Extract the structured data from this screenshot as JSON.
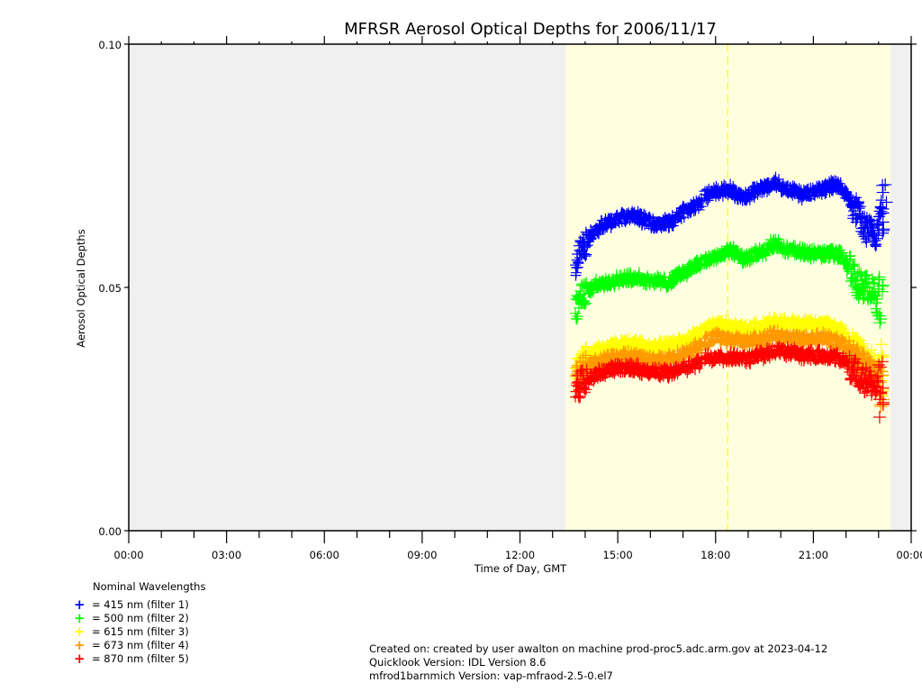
{
  "chart_data": {
    "type": "scatter",
    "title": "MFRSR Aerosol Optical Depths for 2006/11/17",
    "xlabel": "Time of Day, GMT",
    "ylabel": "Aerosol Optical Depths",
    "xlim": [
      0,
      24
    ],
    "ylim": [
      0.0,
      0.1
    ],
    "x_unit": "hours GMT",
    "x_ticks": [
      {
        "value": 0,
        "label": "00:00"
      },
      {
        "value": 3,
        "label": "03:00"
      },
      {
        "value": 6,
        "label": "06:00"
      },
      {
        "value": 9,
        "label": "09:00"
      },
      {
        "value": 12,
        "label": "12:00"
      },
      {
        "value": 15,
        "label": "15:00"
      },
      {
        "value": 18,
        "label": "18:00"
      },
      {
        "value": 21,
        "label": "21:00"
      },
      {
        "value": 24,
        "label": "00:00"
      }
    ],
    "y_ticks": [
      {
        "value": 0.0,
        "label": "0.00"
      },
      {
        "value": 0.05,
        "label": "0.05"
      },
      {
        "value": 0.1,
        "label": "0.10"
      }
    ],
    "daylight_period": [
      13.4,
      23.37
    ],
    "solar_noon": 18.37,
    "colors": {
      "night_background": "#f0f0f0",
      "daylight_background": "#ffffe0",
      "solar_noon_line": "#ffff00"
    },
    "legend": {
      "title": "Nominal Wavelengths",
      "placement": "bottom-left"
    },
    "series": [
      {
        "name": "= 415 nm (filter 1)",
        "color": "#0000ff",
        "x": [
          13.7,
          13.9,
          14.2,
          14.6,
          15.0,
          15.4,
          15.8,
          16.2,
          16.6,
          17.0,
          17.5,
          17.7,
          18.0,
          18.4,
          18.9,
          19.3,
          19.8,
          20.3,
          20.7,
          21.2,
          21.7,
          22.0,
          22.3,
          22.6,
          22.9,
          23.1
        ],
        "y": [
          0.055,
          0.058,
          0.061,
          0.063,
          0.064,
          0.0648,
          0.064,
          0.0628,
          0.0635,
          0.0655,
          0.067,
          0.069,
          0.0695,
          0.07,
          0.0685,
          0.07,
          0.0715,
          0.07,
          0.069,
          0.07,
          0.071,
          0.069,
          0.066,
          0.062,
          0.061,
          0.066
        ]
      },
      {
        "name": "= 500 nm (filter 2)",
        "color": "#00ff00",
        "x": [
          13.7,
          14.0,
          14.4,
          15.0,
          15.5,
          16.0,
          16.5,
          17.0,
          17.5,
          17.7,
          18.0,
          18.5,
          18.9,
          19.4,
          19.8,
          20.3,
          20.8,
          21.3,
          21.8,
          22.1,
          22.4,
          22.7,
          23.0
        ],
        "y": [
          0.046,
          0.049,
          0.0505,
          0.0515,
          0.052,
          0.0515,
          0.051,
          0.053,
          0.055,
          0.0555,
          0.0565,
          0.0575,
          0.056,
          0.057,
          0.059,
          0.0575,
          0.057,
          0.057,
          0.057,
          0.054,
          0.0505,
          0.05,
          0.047
        ]
      },
      {
        "name": "= 615 nm (filter 3)",
        "color": "#ffff00",
        "x": [
          13.7,
          14.0,
          14.5,
          15.0,
          15.5,
          16.0,
          16.5,
          17.0,
          17.5,
          17.7,
          18.0,
          18.5,
          19.0,
          19.4,
          19.8,
          20.3,
          20.8,
          21.3,
          21.8,
          22.2,
          22.6,
          23.0
        ],
        "y": [
          0.0325,
          0.0355,
          0.0375,
          0.038,
          0.0385,
          0.0375,
          0.038,
          0.039,
          0.0405,
          0.0415,
          0.0425,
          0.042,
          0.0415,
          0.042,
          0.043,
          0.0425,
          0.0425,
          0.0425,
          0.0415,
          0.038,
          0.0355,
          0.033
        ]
      },
      {
        "name": "= 673 nm (filter 4)",
        "color": "#ff9900",
        "x": [
          13.7,
          14.0,
          14.5,
          15.0,
          15.5,
          16.0,
          16.5,
          17.0,
          17.5,
          17.7,
          18.0,
          18.5,
          19.0,
          19.4,
          19.8,
          20.3,
          20.8,
          21.3,
          21.8,
          22.2,
          22.6,
          23.0
        ],
        "y": [
          0.031,
          0.0335,
          0.035,
          0.0355,
          0.036,
          0.035,
          0.0352,
          0.0362,
          0.0378,
          0.039,
          0.0398,
          0.0392,
          0.0388,
          0.0392,
          0.0402,
          0.0396,
          0.0395,
          0.0396,
          0.0388,
          0.036,
          0.0338,
          0.031
        ]
      },
      {
        "name": "= 870 nm (filter 5)",
        "color": "#ff0000",
        "x": [
          13.7,
          14.0,
          14.5,
          15.0,
          15.5,
          16.0,
          16.5,
          17.0,
          17.5,
          17.7,
          18.0,
          18.5,
          19.0,
          19.4,
          19.8,
          20.3,
          20.8,
          21.3,
          21.8,
          22.2,
          22.6,
          23.0
        ],
        "y": [
          0.029,
          0.031,
          0.0325,
          0.0335,
          0.0335,
          0.0325,
          0.0325,
          0.0335,
          0.0345,
          0.0355,
          0.0355,
          0.0355,
          0.0355,
          0.036,
          0.037,
          0.0365,
          0.036,
          0.036,
          0.0355,
          0.033,
          0.031,
          0.029
        ]
      }
    ]
  },
  "footer": {
    "created": "Created on: created by user awalton on machine prod-proc5.adc.arm.gov at 2023-04-12",
    "quicklook": "Quicklook Version: IDL Version 8.6",
    "version": "mfrod1barnmich Version: vap-mfraod-2.5-0.el7"
  }
}
